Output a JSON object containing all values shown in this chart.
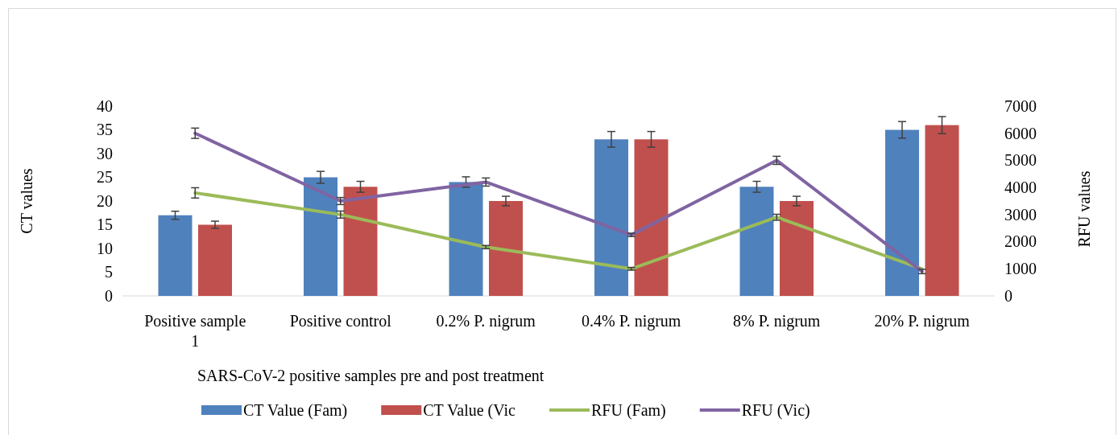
{
  "chart_data": {
    "type": "bar",
    "xlabel": "SARS-CoV-2 positive samples pre and post treatment",
    "ylabel": "CT values",
    "y2label": "RFU values",
    "categories": [
      "Positive sample 1",
      "Positive control",
      "0.2% P. nigrum",
      "0.4% P. nigrum",
      "8% P. nigrum",
      "20% P. nigrum"
    ],
    "series": [
      {
        "name": "CT Value (Fam)",
        "color": "#4f81bd",
        "values": [
          17,
          25,
          24,
          33,
          23,
          35
        ],
        "errors": [
          0.85,
          1.25,
          1.1,
          1.65,
          1.15,
          1.75
        ]
      },
      {
        "name": "CT Value (Vic",
        "color": "#c0504d",
        "values": [
          15,
          23,
          20,
          33,
          20,
          36
        ],
        "errors": [
          0.75,
          1.15,
          1.0,
          1.65,
          1.0,
          1.8
        ]
      },
      {
        "name": "RFU (Fam)",
        "type": "line",
        "axis": "y2",
        "color": "#9bbb59",
        "values": [
          3800,
          3000,
          1800,
          1000,
          2900,
          1000
        ],
        "errors": [
          190,
          130,
          60,
          50,
          110,
          null
        ]
      },
      {
        "name": "RFU (Vic)",
        "type": "line",
        "axis": "y2",
        "color": "#8064a2",
        "values": [
          6000,
          3500,
          4200,
          2250,
          5000,
          900
        ],
        "errors": [
          190,
          130,
          150,
          60,
          150,
          80
        ]
      }
    ],
    "ylim": [
      0,
      40
    ],
    "yticks": [
      0,
      5,
      10,
      15,
      20,
      25,
      30,
      35,
      40
    ],
    "y2lim": [
      0,
      7000
    ],
    "y2ticks": [
      0,
      1000,
      2000,
      3000,
      4000,
      5000,
      6000,
      7000
    ],
    "legend": "bottom",
    "grid": false,
    "marker": "none",
    "line_style": "solid"
  }
}
